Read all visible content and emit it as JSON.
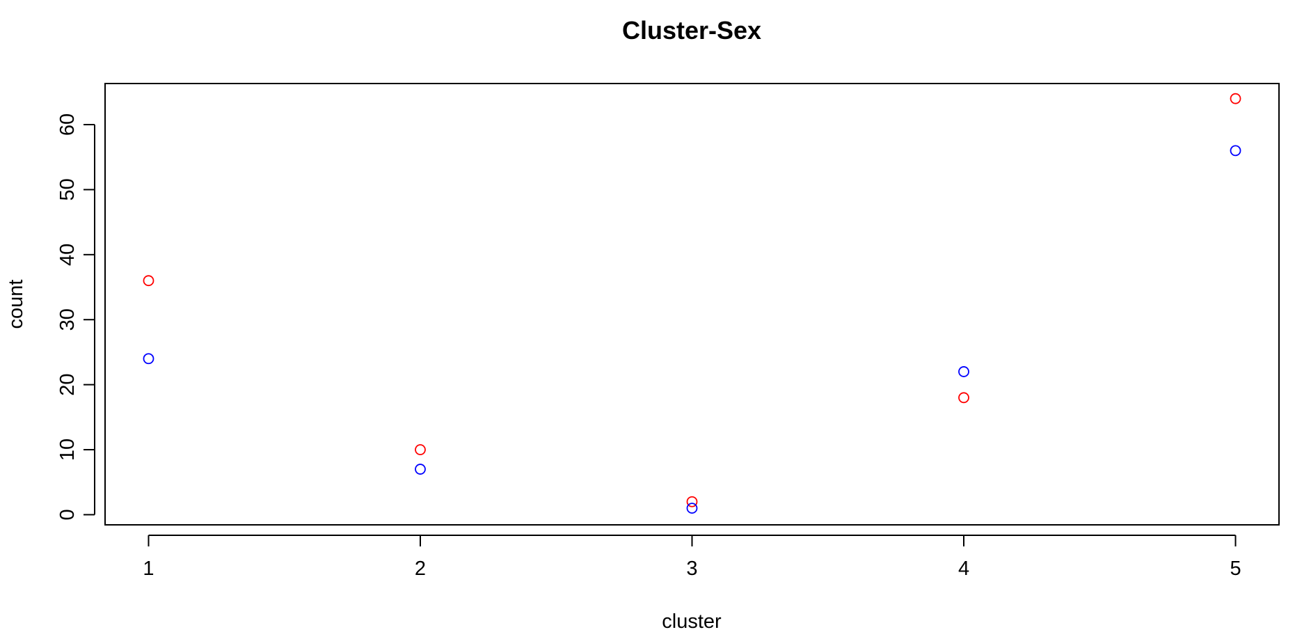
{
  "chart_data": {
    "type": "scatter",
    "title": "Cluster-Sex",
    "xlabel": "cluster",
    "ylabel": "count",
    "x": [
      1,
      2,
      3,
      4,
      5
    ],
    "series": [
      {
        "color": "#ff0000",
        "marker": "open-circle",
        "values": [
          36,
          10,
          2,
          18,
          64
        ]
      },
      {
        "color": "#0000ff",
        "marker": "open-circle",
        "values": [
          24,
          7,
          1,
          22,
          56
        ]
      }
    ],
    "xticks": [
      1,
      2,
      3,
      4,
      5
    ],
    "xtick_labels": [
      "1",
      "2",
      "3",
      "4",
      "5"
    ],
    "yticks": [
      0,
      10,
      20,
      30,
      40,
      50,
      60
    ],
    "ytick_labels": [
      "0",
      "10",
      "20",
      "30",
      "40",
      "50",
      "60"
    ],
    "xlim": [
      0.84,
      5.16
    ],
    "ylim": [
      -1.56,
      66.32
    ],
    "grid": false,
    "legend": "none"
  }
}
